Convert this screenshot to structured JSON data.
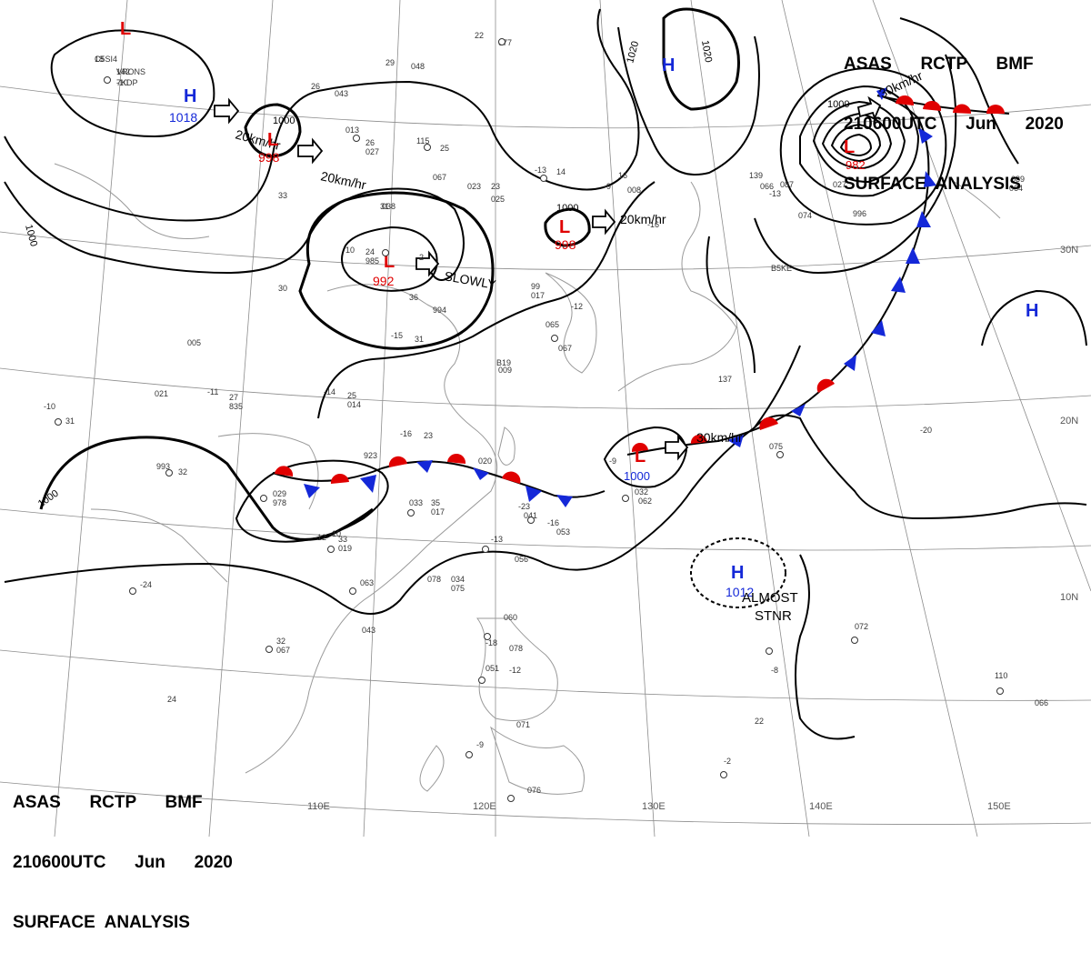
{
  "header": {
    "line1": "ASAS      RCTP      BMF",
    "line2": "210600UTC      Jun      2020",
    "line3": "SURFACE  ANALYSIS"
  },
  "footer": {
    "line1": "ASAS      RCTP      BMF",
    "line2": "210600UTC      Jun      2020",
    "line3": "SURFACE  ANALYSIS"
  },
  "longitudes": [
    "110E",
    "120E",
    "130E",
    "140E",
    "150E"
  ],
  "latitudes": [
    "30N",
    "20N",
    "10N"
  ],
  "isobar_labels": [
    "1000",
    "1000",
    "1000",
    "1000",
    "1020",
    "1020",
    "1000"
  ],
  "pressure_centers": [
    {
      "type": "L",
      "value": ""
    },
    {
      "type": "H",
      "value": "1018"
    },
    {
      "type": "L",
      "value": "998"
    },
    {
      "type": "L",
      "value": "992"
    },
    {
      "type": "L",
      "value": "998"
    },
    {
      "type": "H",
      "value": ""
    },
    {
      "type": "L",
      "value": "982"
    },
    {
      "type": "H",
      "value": ""
    },
    {
      "type": "L",
      "value": "1000"
    },
    {
      "type": "H",
      "value": "1012"
    }
  ],
  "motion_labels": [
    "20km/hr",
    "20km/hr",
    "SLOWLY",
    "20km/hr",
    "30km/hr",
    "30km/hr"
  ],
  "stnr_note": {
    "line1": "ALMOST",
    "line2": "STNR"
  },
  "stations": [
    "18",
    "142",
    "-10",
    "26",
    "043",
    "29",
    "048",
    "22",
    "077",
    "115",
    "25",
    "013",
    "26",
    "027",
    "-13",
    "14",
    "023",
    "23",
    "025",
    "-9",
    "16",
    "008",
    "-16",
    "139",
    "066",
    "-13",
    "027",
    "10",
    "24",
    "985",
    "-2",
    "36",
    "994",
    "-15",
    "31",
    "99",
    "017",
    "-12",
    "065",
    "067",
    "-11",
    "27",
    "835",
    "-14",
    "25",
    "014",
    "-10",
    "31",
    "993",
    "32",
    "029",
    "978",
    "-16",
    "23",
    "020",
    "033",
    "35",
    "017",
    "-23",
    "041",
    "-16",
    "053",
    "-9",
    "032",
    "062",
    "-12",
    "33",
    "019",
    "-24",
    "063",
    "034",
    "075",
    "-13",
    "056",
    "043",
    "32",
    "067",
    "060",
    "-18",
    "078",
    "051",
    "-12",
    "071",
    "-9",
    "076",
    "075",
    "-20",
    "072",
    "110",
    "-2",
    "137",
    "087",
    "064",
    "067",
    "089",
    "066",
    "-10",
    "078",
    "22",
    "24",
    "31",
    "33",
    "30",
    "005",
    "021",
    "038",
    "923",
    "B19",
    "009",
    "996",
    "074",
    "-8",
    "B5KE",
    "C5SI4",
    "VRONS",
    "7KDP"
  ],
  "colors": {
    "low": "#e00000",
    "high": "#1428d8",
    "line": "#000000",
    "grid": "#8c8c8c",
    "coast": "#9a9a9a"
  }
}
